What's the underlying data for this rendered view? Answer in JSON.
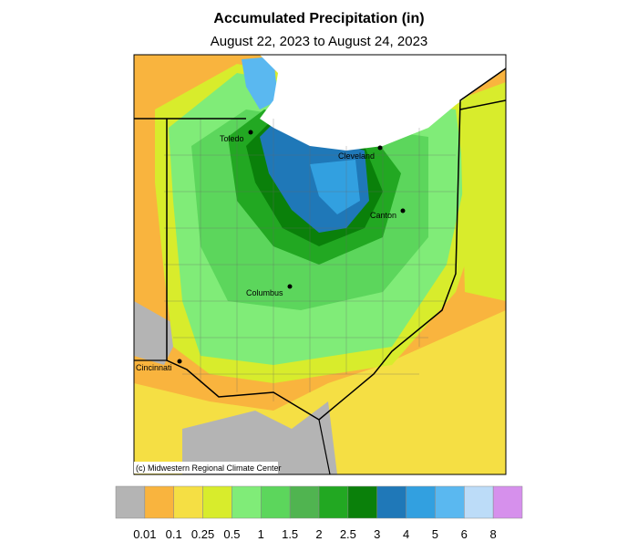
{
  "header": {
    "title": "Accumulated Precipitation (in)",
    "subtitle": "August 22, 2023 to August 24, 2023"
  },
  "map": {
    "cities": [
      {
        "label": "Toledo"
      },
      {
        "label": "Cleveland"
      },
      {
        "label": "Canton"
      },
      {
        "label": "Columbus"
      },
      {
        "label": "Cincinnati"
      }
    ],
    "credit": "(c) Midwestern Regional Climate Center"
  },
  "legend": {
    "colors": [
      "#b4b4b4",
      "#f9b43e",
      "#f5df44",
      "#d8ec2c",
      "#80ec78",
      "#5cd65c",
      "#50b450",
      "#22a822",
      "#0a800a",
      "#1f78b8",
      "#32a0e0",
      "#5ab8f0",
      "#bcdcf8",
      "#d690ec"
    ],
    "labels": [
      "0.01",
      "0.1",
      "0.25",
      "0.5",
      "1",
      "1.5",
      "2",
      "2.5",
      "3",
      "4",
      "5",
      "6",
      "8"
    ]
  }
}
